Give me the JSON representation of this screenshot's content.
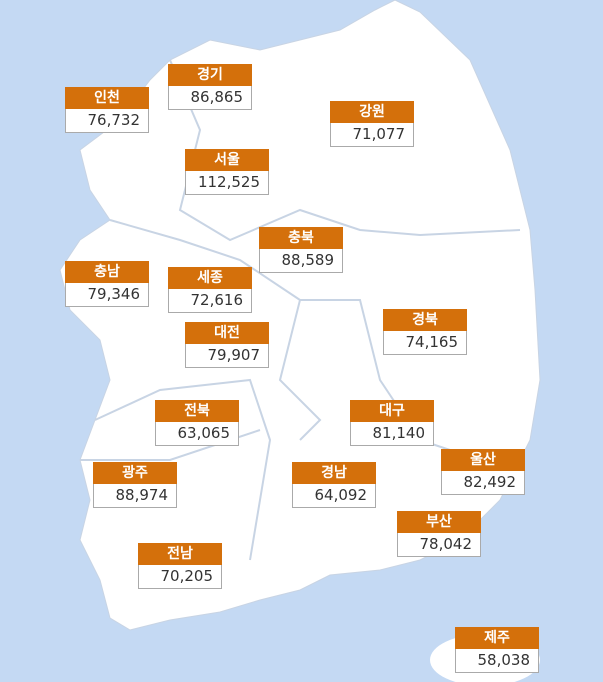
{
  "regions": [
    {
      "name": "인천",
      "value": "76,732"
    },
    {
      "name": "경기",
      "value": "86,865"
    },
    {
      "name": "강원",
      "value": "71,077"
    },
    {
      "name": "서울",
      "value": "112,525"
    },
    {
      "name": "충북",
      "value": "88,589"
    },
    {
      "name": "충남",
      "value": "79,346"
    },
    {
      "name": "세종",
      "value": "72,616"
    },
    {
      "name": "경북",
      "value": "74,165"
    },
    {
      "name": "대전",
      "value": "79,907"
    },
    {
      "name": "전북",
      "value": "63,065"
    },
    {
      "name": "대구",
      "value": "81,140"
    },
    {
      "name": "울산",
      "value": "82,492"
    },
    {
      "name": "광주",
      "value": "88,974"
    },
    {
      "name": "경남",
      "value": "64,092"
    },
    {
      "name": "부산",
      "value": "78,042"
    },
    {
      "name": "전남",
      "value": "70,205"
    },
    {
      "name": "제주",
      "value": "58,038"
    }
  ]
}
